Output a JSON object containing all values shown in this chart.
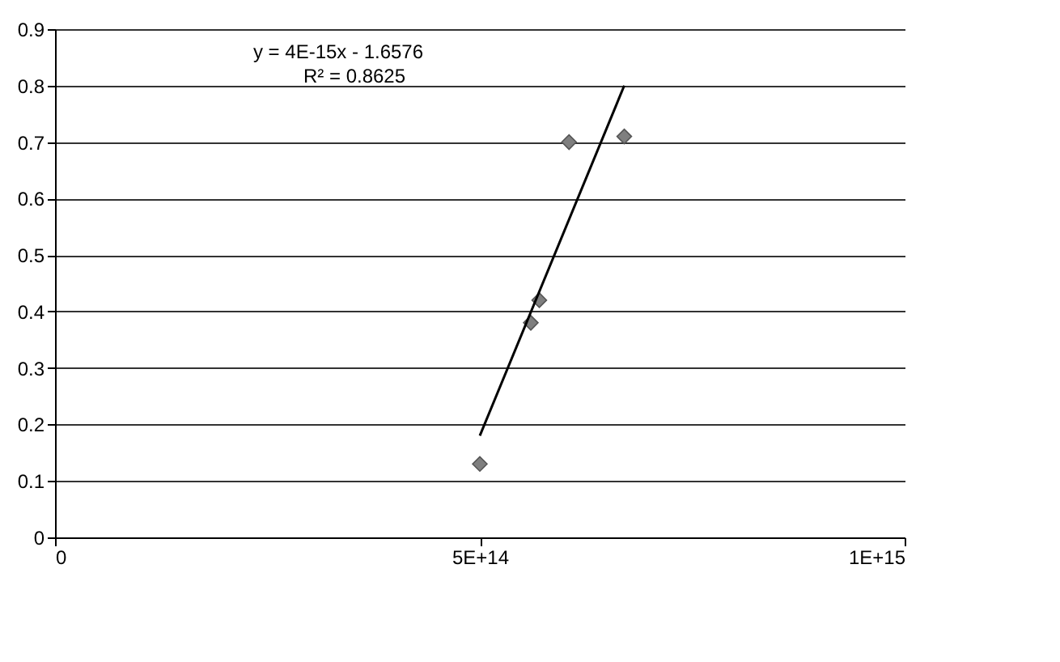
{
  "chart_data": {
    "type": "scatter",
    "xlim": [
      0,
      1000000000000000.0
    ],
    "ylim": [
      0,
      0.9
    ],
    "xticks": [
      0,
      {
        "value": 500000000000000.0,
        "label": "5E+14"
      },
      {
        "value": 1000000000000000.0,
        "label": "1E+15"
      }
    ],
    "yticks": [
      0,
      0.1,
      0.2,
      0.3,
      0.4,
      0.5,
      0.6,
      0.7,
      0.8,
      0.9
    ],
    "grid": "y",
    "marker": "diamond",
    "legend": false,
    "annotations": [
      "y = 4E-15x - 1.6576",
      "R² = 0.8625"
    ],
    "series": [
      {
        "type": "scatter",
        "color": "#7f7f7f",
        "x": [
          500000000000000.0,
          560000000000000.0,
          570000000000000.0,
          605000000000000.0,
          670000000000000.0
        ],
        "values": [
          0.13,
          0.38,
          0.42,
          0.7,
          0.71
        ]
      },
      {
        "type": "line",
        "color": "#000000",
        "x": [
          500000000000000.0,
          670000000000000.0
        ],
        "values": [
          0.18,
          0.8
        ],
        "marker": "none"
      }
    ]
  }
}
